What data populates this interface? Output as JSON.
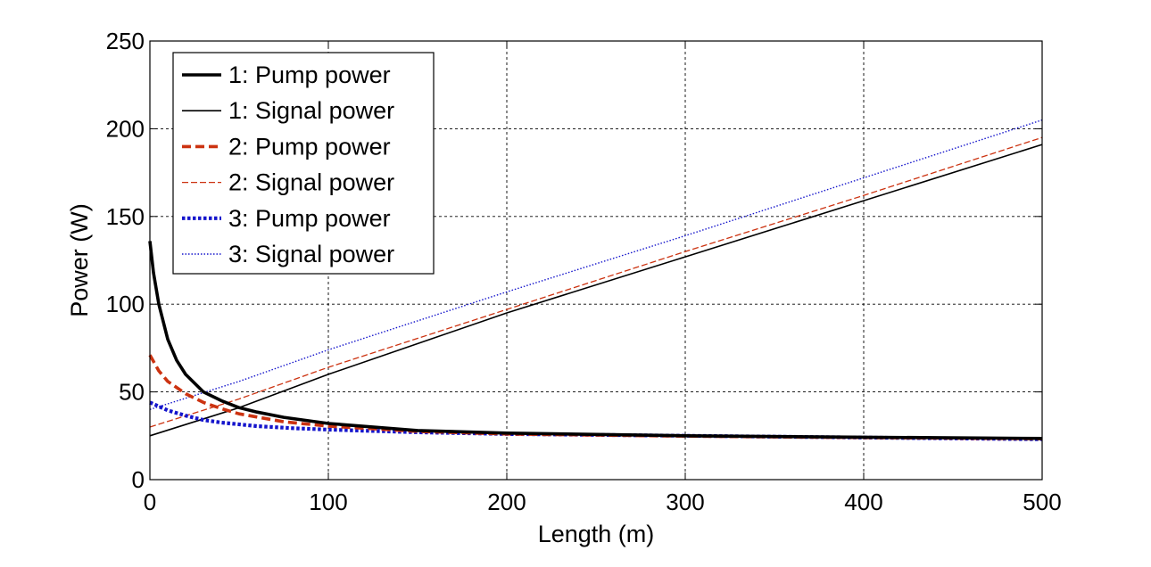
{
  "chart_data": {
    "type": "line",
    "title": "",
    "xlabel": "Length  (m)",
    "ylabel": "Power  (W)",
    "xlim": [
      0,
      500
    ],
    "ylim": [
      0,
      250
    ],
    "xticks": [
      0,
      100,
      200,
      300,
      400,
      500
    ],
    "yticks": [
      0,
      50,
      100,
      150,
      200,
      250
    ],
    "grid": true,
    "legend_position": "top-left",
    "series": [
      {
        "name": "1: Pump power",
        "color": "#000000",
        "style": "solid-thick",
        "x": [
          0,
          2,
          5,
          10,
          15,
          20,
          30,
          40,
          50,
          60,
          75,
          100,
          150,
          200,
          300,
          400,
          500
        ],
        "y": [
          136,
          118,
          100,
          80,
          68,
          60,
          50,
          45,
          41,
          38.5,
          35.5,
          32,
          28,
          26.5,
          25,
          24.2,
          23.5
        ]
      },
      {
        "name": "1: Signal power",
        "color": "#000000",
        "style": "solid-thin",
        "x": [
          0,
          50,
          100,
          200,
          300,
          400,
          500
        ],
        "y": [
          25,
          41,
          60,
          95,
          127,
          159,
          191
        ]
      },
      {
        "name": "2: Pump power",
        "color": "#cc3311",
        "style": "dashed-thick",
        "x": [
          0,
          5,
          10,
          20,
          30,
          40,
          50,
          75,
          100,
          150,
          200,
          300,
          400,
          500
        ],
        "y": [
          71,
          62,
          56,
          49,
          44,
          40.5,
          37.5,
          33,
          30.5,
          27.5,
          26,
          24.8,
          24,
          23.3
        ]
      },
      {
        "name": "2: Signal power",
        "color": "#cc3311",
        "style": "dashed-thin",
        "x": [
          0,
          50,
          100,
          200,
          300,
          400,
          500
        ],
        "y": [
          30,
          46,
          64,
          97,
          130,
          162,
          195
        ]
      },
      {
        "name": "3: Pump power",
        "color": "#1515cc",
        "style": "dotted-thick",
        "x": [
          0,
          10,
          20,
          30,
          40,
          60,
          80,
          100,
          150,
          200,
          300,
          400,
          500
        ],
        "y": [
          44,
          39.5,
          36.5,
          34,
          32.5,
          30.5,
          29.3,
          28.5,
          27,
          26,
          25,
          24,
          23
        ]
      },
      {
        "name": "3: Signal power",
        "color": "#1515cc",
        "style": "dotted-thin",
        "x": [
          0,
          50,
          100,
          200,
          300,
          400,
          500
        ],
        "y": [
          40,
          56,
          74,
          107,
          139,
          172,
          205
        ]
      }
    ]
  }
}
